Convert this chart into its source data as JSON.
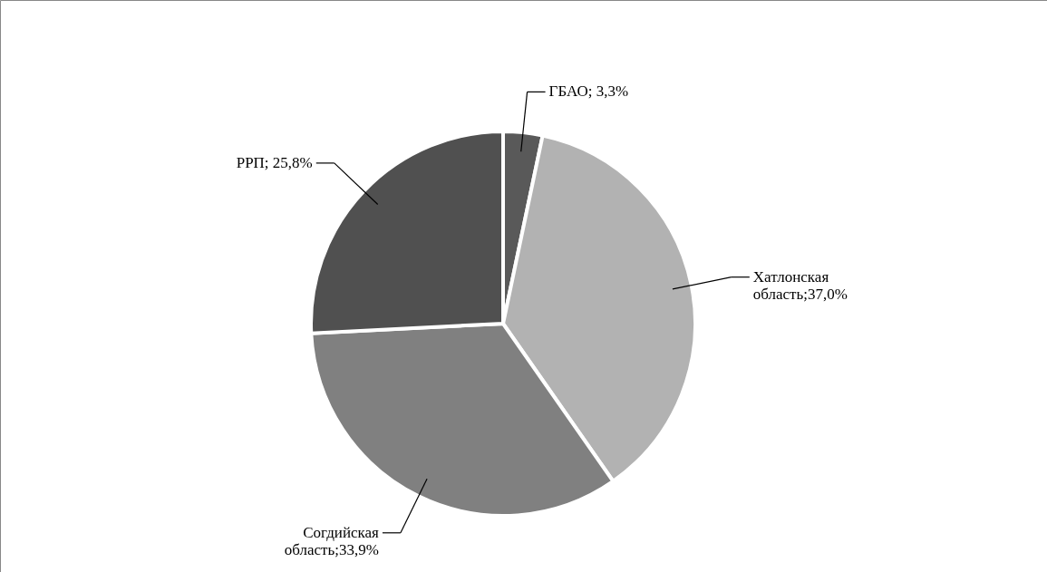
{
  "chart_data": {
    "type": "pie",
    "categories": [
      "ГБАО",
      "Хатлонская область",
      "Согдийская область",
      "РРП"
    ],
    "values": [
      3.3,
      37.0,
      33.9,
      25.8
    ],
    "colors": [
      "#595959",
      "#b2b2b2",
      "#808080",
      "#505050"
    ],
    "value_labels": [
      "3,3%",
      "37,0%",
      "33,9%",
      "25,8%"
    ]
  }
}
